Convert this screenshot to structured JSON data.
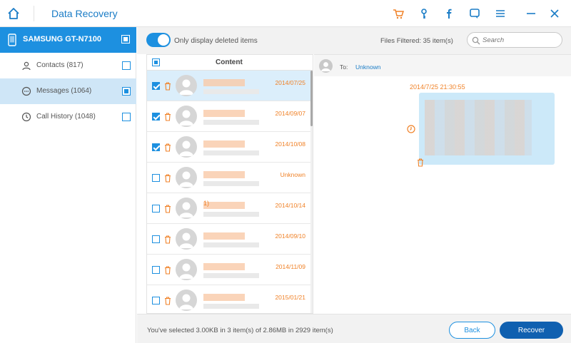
{
  "app": {
    "title": "Data Recovery",
    "accent": "#1d90e0",
    "orange": "#f08228"
  },
  "toolbar_icons": [
    "cart-icon",
    "key-icon",
    "facebook-icon",
    "feedback-icon",
    "menu-icon",
    "minimize-icon",
    "close-icon"
  ],
  "sidebar": {
    "device": "SAMSUNG GT-N7100",
    "items": [
      {
        "label": "Contacts (817)",
        "icon": "contacts-icon",
        "active": false
      },
      {
        "label": "Messages (1064)",
        "icon": "messages-icon",
        "active": true
      },
      {
        "label": "Call History (1048)",
        "icon": "call-history-icon",
        "active": false
      }
    ]
  },
  "topbar": {
    "toggle_label": "Only display deleted items",
    "files_filtered": "Files Filtered: 35 item(s)",
    "search_placeholder": "Search"
  },
  "list": {
    "header": "Content",
    "rows": [
      {
        "date": "2014/07/25",
        "checked": true,
        "selected": true,
        "name": ""
      },
      {
        "date": "2014/09/07",
        "checked": true,
        "selected": false,
        "name": ""
      },
      {
        "date": "2014/10/08",
        "checked": true,
        "selected": false,
        "name": ""
      },
      {
        "date": "Unknown",
        "checked": false,
        "selected": false,
        "name": ""
      },
      {
        "date": "2014/10/14",
        "checked": false,
        "selected": false,
        "name": "1)"
      },
      {
        "date": "2014/09/10",
        "checked": false,
        "selected": false,
        "name": ""
      },
      {
        "date": "2014/11/09",
        "checked": false,
        "selected": false,
        "name": ""
      },
      {
        "date": "2015/01/21",
        "checked": false,
        "selected": false,
        "name": ""
      }
    ]
  },
  "detail": {
    "to_label": "To:",
    "to_name": "Unknown",
    "timestamp": "2014/7/25 21:30:55"
  },
  "footer": {
    "status": "You've selected 3.00KB in 3 item(s) of 2.86MB in 2929 item(s)",
    "back_label": "Back",
    "recover_label": "Recover"
  }
}
